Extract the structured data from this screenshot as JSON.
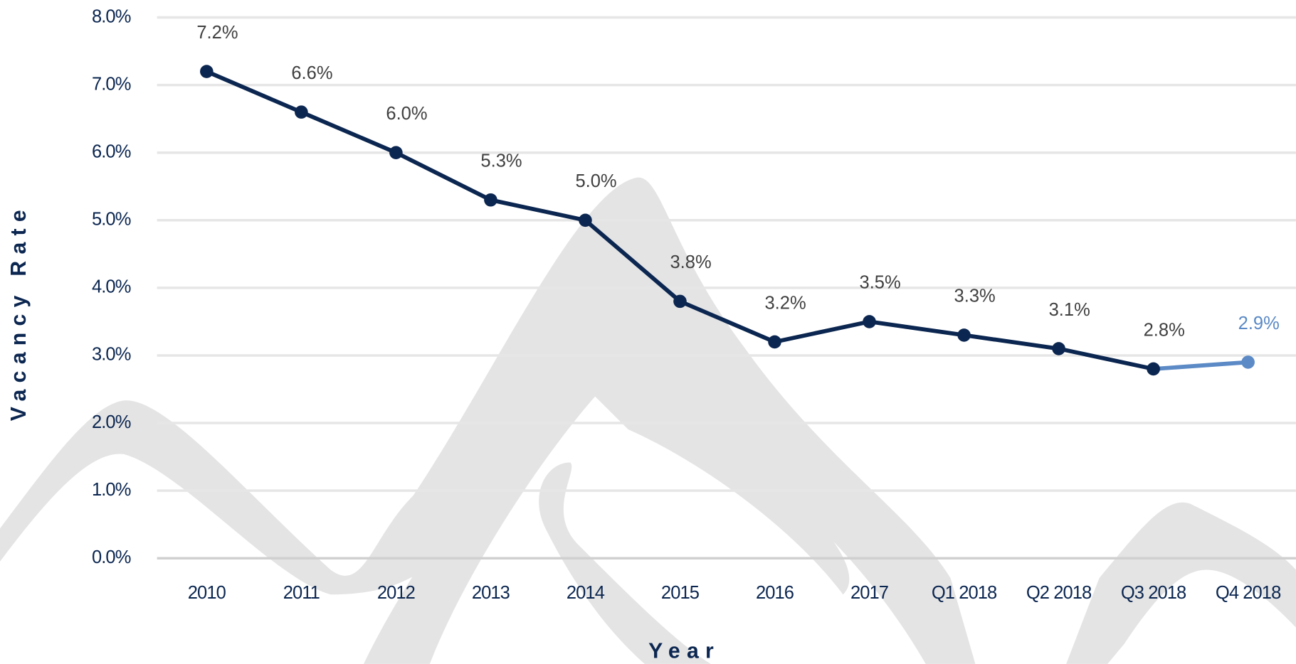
{
  "chart_data": {
    "type": "line",
    "x_label": "Year",
    "y_label": "Vacancy Rate",
    "categories": [
      "2010",
      "2011",
      "2012",
      "2013",
      "2014",
      "2015",
      "2016",
      "2017",
      "Q1 2018",
      "Q2 2018",
      "Q3 2018",
      "Q4 2018"
    ],
    "series": [
      {
        "color": "#0b2650",
        "point_colors": [
          "#0b2650",
          "#0b2650",
          "#0b2650",
          "#0b2650",
          "#0b2650",
          "#0b2650",
          "#0b2650",
          "#0b2650",
          "#0b2650",
          "#0b2650",
          "#0b2650",
          "#5b8ac6"
        ],
        "values": [
          7.2,
          6.6,
          6.0,
          5.3,
          5.0,
          3.8,
          3.2,
          3.5,
          3.3,
          3.1,
          2.8,
          2.9
        ],
        "value_labels": [
          "7.2%",
          "6.6%",
          "6.0%",
          "5.3%",
          "5.0%",
          "3.8%",
          "3.2%",
          "3.5%",
          "3.3%",
          "3.1%",
          "2.8%",
          "2.9%"
        ]
      }
    ],
    "ylim": [
      0,
      8
    ],
    "yticks": [
      {
        "value": 0,
        "label": "0.0%"
      },
      {
        "value": 1,
        "label": "1.0%"
      },
      {
        "value": 2,
        "label": "2.0%"
      },
      {
        "value": 3,
        "label": "3.0%"
      },
      {
        "value": 4,
        "label": "4.0%"
      },
      {
        "value": 5,
        "label": "5.0%"
      },
      {
        "value": 6,
        "label": "6.0%"
      },
      {
        "value": 7,
        "label": "7.0%"
      },
      {
        "value": 8,
        "label": "8.0%"
      }
    ],
    "grid": true
  }
}
